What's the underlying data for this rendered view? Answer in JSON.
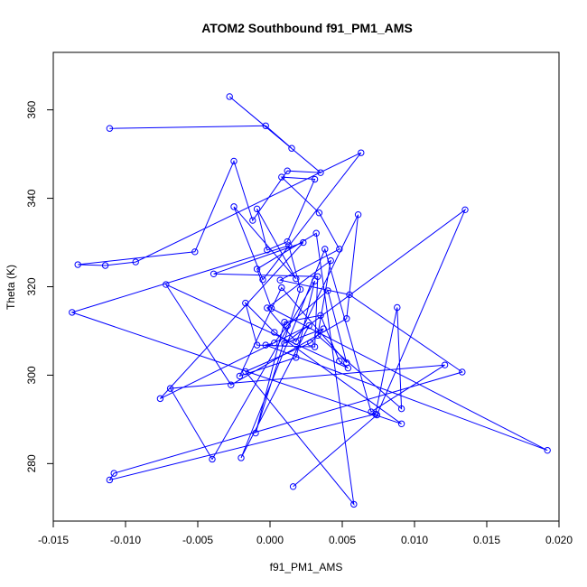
{
  "chart_data": {
    "type": "line",
    "title": "ATOM2 Southbound f91_PM1_AMS",
    "xlabel": "f91_PM1_AMS",
    "ylabel": "Theta (K)",
    "xlim": [
      -0.015,
      0.02
    ],
    "ylim": [
      267,
      373
    ],
    "xticks": [
      -0.015,
      -0.01,
      -0.005,
      0.0,
      0.005,
      0.01,
      0.015,
      0.02
    ],
    "xtick_labels": [
      "-0.015",
      "-0.010",
      "-0.005",
      "0.000",
      "0.005",
      "0.010",
      "0.015",
      "0.020"
    ],
    "yticks": [
      280,
      300,
      320,
      340,
      360
    ],
    "ytick_labels": [
      "280",
      "300",
      "320",
      "340",
      "360"
    ],
    "grid": false,
    "series": [
      {
        "color": "#0000ff",
        "marker": "open-circle",
        "x": [
          -0.0111,
          -0.0003,
          0.0015,
          -0.0028,
          0.0035,
          0.0012,
          -0.0012,
          -0.0025,
          -0.0052,
          -0.0133,
          -0.0114,
          -0.0093,
          0.0063,
          -0.0005,
          -0.0025,
          0.0018,
          -0.0009,
          -0.0002,
          0.0012,
          0.0031,
          0.0008,
          0.0034,
          0.0048,
          0.0007,
          0.0055,
          0.0133,
          -0.0108,
          -0.0111,
          0.0073,
          0.0088,
          0.0091,
          0.0033,
          0.0042,
          -0.0002,
          0.0018,
          0.0061,
          0.0053,
          -0.0027,
          -0.0072,
          0.0054,
          0.0048,
          0.0035,
          0.001,
          -0.001,
          0.0021,
          0.0013,
          -0.0137,
          0.0091,
          0.0003,
          -0.0017,
          -0.0009,
          0.0031,
          0.0033,
          -0.0039,
          0.0023,
          -0.0076,
          0.0027,
          -0.002,
          0.0038,
          0.007,
          0.0121,
          -0.0069,
          -0.004,
          0.0031,
          0.0018,
          -0.0021,
          0.0008,
          0.0053,
          0.004,
          0.0012,
          0.0003,
          -0.0003,
          0.0192,
          0.0001,
          -0.0009,
          0.0032,
          0.0058,
          -0.0017,
          0.0028,
          0.0037,
          0.001,
          0.0135,
          0.0074,
          0.0016
        ],
        "y": [
          355.8,
          356.4,
          351.3,
          363.0,
          345.8,
          346.2,
          335.0,
          348.4,
          327.9,
          325.0,
          324.8,
          325.6,
          350.3,
          321.6,
          338.1,
          321.8,
          337.6,
          328.3,
          330.2,
          344.3,
          344.8,
          336.7,
          328.5,
          321.5,
          318.2,
          300.7,
          277.8,
          276.3,
          291.2,
          315.3,
          292.4,
          309.0,
          325.9,
          315.2,
          307.6,
          336.3,
          312.8,
          297.8,
          320.5,
          301.6,
          303.2,
          313.5,
          312.0,
          286.9,
          319.4,
          329.3,
          314.2,
          289.0,
          309.7,
          316.3,
          306.8,
          306.4,
          322.3,
          322.9,
          330.0,
          294.7,
          311.2,
          281.3,
          328.5,
          291.7,
          302.3,
          297.0,
          281.0,
          321.3,
          304.0,
          299.8,
          319.8,
          302.8,
          319.1,
          311.2,
          307.3,
          306.8,
          283.0,
          315.1,
          324.0,
          332.1,
          270.8,
          300.8,
          307.3,
          310.5,
          307.2,
          337.4,
          291.0,
          274.8
        ]
      }
    ]
  }
}
